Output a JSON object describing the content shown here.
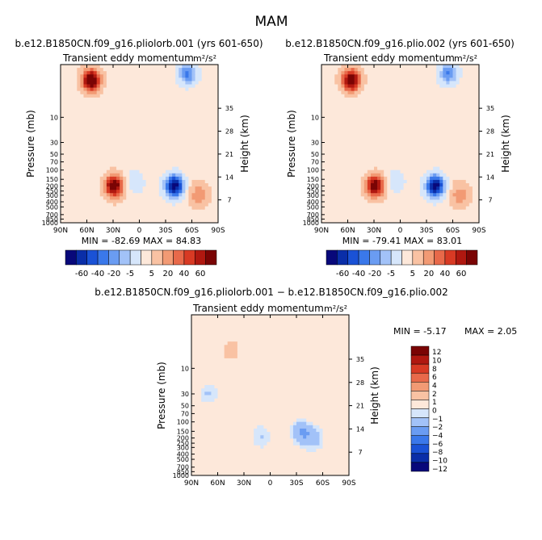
{
  "figure_title": "MAM",
  "palettes": {
    "top": [
      "#08087a",
      "#0a2ea8",
      "#1a52d6",
      "#3a78ea",
      "#6a9cf2",
      "#a2c2f8",
      "#d6e6fb",
      "#fde8da",
      "#f9c2a3",
      "#f29a74",
      "#e8694a",
      "#d83a24",
      "#b01810",
      "#7a0404"
    ],
    "diff": [
      "#08087a",
      "#0a2ea8",
      "#1a52d6",
      "#3a78ea",
      "#6a9cf2",
      "#a2c2f8",
      "#d6e6fb",
      "#fde8da",
      "#f9c2a3",
      "#f29a74",
      "#e8694a",
      "#d83a24",
      "#b01810",
      "#7a0404"
    ]
  },
  "chart_data": [
    {
      "type": "heatmap",
      "title": "b.e12.B1850CN.f09_g16.pliolorb.001 (yrs 601-650)",
      "subtitle_left": "Transient eddy momentum",
      "units_label": "m²/s²",
      "xlabel": "",
      "ylabel": "Pressure (mb)",
      "ylabel_right": "Height (km)",
      "x_ticks": [
        "90N",
        "60N",
        "30N",
        "0",
        "30S",
        "60S",
        "90S"
      ],
      "y_ticks": [
        "10",
        "30",
        "50",
        "70",
        "100",
        "150",
        "200",
        "250",
        "300",
        "400",
        "500",
        "700",
        "850",
        "1000"
      ],
      "y_right_ticks": [
        "35",
        "28",
        "21",
        "14",
        "7"
      ],
      "min_max": "MIN = -82.69   MAX = 84.83",
      "colorbar_levels": [
        "-60",
        "-40",
        "-20",
        "-5",
        "5",
        "20",
        "40",
        "60"
      ],
      "features": [
        {
          "lat": 55,
          "p": 2,
          "value": 80
        },
        {
          "lat": 29,
          "p": 200,
          "value": 75
        },
        {
          "lat": -40,
          "p": 200,
          "value": -80
        },
        {
          "lat": -55,
          "p": 1.5,
          "value": -45
        },
        {
          "lat": -68,
          "p": 300,
          "value": 30
        },
        {
          "lat": 5,
          "p": 170,
          "value": -15
        }
      ]
    },
    {
      "type": "heatmap",
      "title": "b.e12.B1850CN.f09_g16.plio.002 (yrs 601-650)",
      "subtitle_left": "Transient eddy momentum",
      "units_label": "m²/s²",
      "xlabel": "",
      "ylabel": "Pressure (mb)",
      "ylabel_right": "Height (km)",
      "x_ticks": [
        "90N",
        "60N",
        "30N",
        "0",
        "30S",
        "60S",
        "90S"
      ],
      "y_ticks": [
        "10",
        "30",
        "50",
        "70",
        "100",
        "150",
        "200",
        "250",
        "300",
        "400",
        "500",
        "700",
        "850",
        "1000"
      ],
      "y_right_ticks": [
        "35",
        "28",
        "21",
        "14",
        "7"
      ],
      "min_max": "MIN = -79.41   MAX = 83.01",
      "colorbar_levels": [
        "-60",
        "-40",
        "-20",
        "-5",
        "5",
        "20",
        "40",
        "60"
      ],
      "features": [
        {
          "lat": 56,
          "p": 2,
          "value": 78
        },
        {
          "lat": 29,
          "p": 200,
          "value": 73
        },
        {
          "lat": -40,
          "p": 200,
          "value": -78
        },
        {
          "lat": -55,
          "p": 1.5,
          "value": -42
        },
        {
          "lat": -68,
          "p": 300,
          "value": 28
        },
        {
          "lat": 5,
          "p": 170,
          "value": -14
        }
      ]
    },
    {
      "type": "heatmap",
      "title": "b.e12.B1850CN.f09_g16.pliolorb.001 − b.e12.B1850CN.f09_g16.plio.002",
      "subtitle_left": "Transient eddy momentum",
      "units_label": "m²/s²",
      "xlabel": "",
      "ylabel": "Pressure (mb)",
      "ylabel_right": "Height (km)",
      "x_ticks": [
        "90N",
        "60N",
        "30N",
        "0",
        "30S",
        "60S",
        "90S"
      ],
      "y_ticks": [
        "10",
        "30",
        "50",
        "70",
        "100",
        "150",
        "200",
        "250",
        "300",
        "400",
        "500",
        "700",
        "850",
        "1000"
      ],
      "y_right_ticks": [
        "35",
        "28",
        "21",
        "14",
        "7"
      ],
      "min_max_min": "MIN =   -5.17",
      "min_max_max": "MAX =   2.05",
      "colorbar_levels": [
        "12",
        "10",
        "8",
        "6",
        "4",
        "2",
        "1",
        "0",
        "−1",
        "−2",
        "−4",
        "−6",
        "−8",
        "−10",
        "−12"
      ],
      "features": [
        {
          "lat": 72,
          "p": 30,
          "value": -2.5
        },
        {
          "lat": -35,
          "p": 150,
          "value": -4.5
        },
        {
          "lat": -50,
          "p": 200,
          "value": -3
        },
        {
          "lat": 45,
          "p": 5,
          "value": 1.5
        },
        {
          "lat": 10,
          "p": 200,
          "value": -2
        }
      ]
    }
  ]
}
